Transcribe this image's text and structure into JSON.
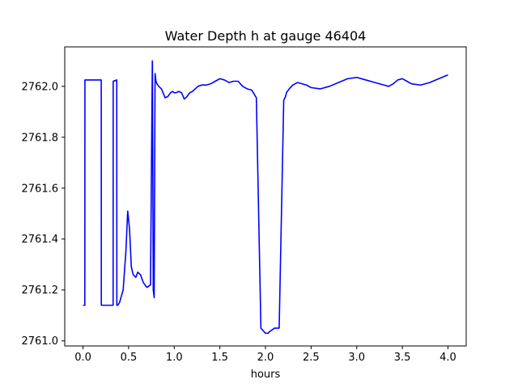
{
  "chart_data": {
    "type": "line",
    "title": "Water Depth h at gauge 46404",
    "xlabel": "hours",
    "ylabel": "",
    "xlim": [
      -0.2,
      4.2
    ],
    "ylim": [
      2760.98,
      2762.155
    ],
    "xticks": [
      0.0,
      0.5,
      1.0,
      1.5,
      2.0,
      2.5,
      3.0,
      3.5,
      4.0
    ],
    "xtick_labels": [
      "0.0",
      "0.5",
      "1.0",
      "1.5",
      "2.0",
      "2.5",
      "3.0",
      "3.5",
      "4.0"
    ],
    "yticks": [
      2761.0,
      2761.2,
      2761.4,
      2761.6,
      2761.8,
      2762.0
    ],
    "ytick_labels": [
      "2761.0",
      "2761.2",
      "2761.4",
      "2761.6",
      "2761.8",
      "2762.0"
    ],
    "grid": false,
    "series": [
      {
        "color": "#0000ff",
        "x": [
          0.0,
          0.02,
          0.021,
          0.2,
          0.201,
          0.33,
          0.331,
          0.37,
          0.371,
          0.38,
          0.4,
          0.44,
          0.47,
          0.49,
          0.51,
          0.53,
          0.55,
          0.58,
          0.6,
          0.63,
          0.66,
          0.7,
          0.74,
          0.76,
          0.761,
          0.77,
          0.78,
          0.79,
          0.8,
          0.81,
          0.811,
          0.83,
          0.86,
          0.9,
          0.93,
          0.96,
          0.98,
          1.0,
          1.02,
          1.05,
          1.08,
          1.11,
          1.14,
          1.17,
          1.2,
          1.23,
          1.26,
          1.3,
          1.35,
          1.4,
          1.45,
          1.5,
          1.55,
          1.6,
          1.65,
          1.7,
          1.75,
          1.8,
          1.85,
          1.9,
          1.95,
          2.0,
          2.03,
          2.04,
          2.06,
          2.1,
          2.15,
          2.2,
          2.22,
          2.23,
          2.26,
          2.3,
          2.35,
          2.4,
          2.45,
          2.5,
          2.6,
          2.7,
          2.8,
          2.9,
          3.0,
          3.1,
          3.2,
          3.3,
          3.35,
          3.4,
          3.45,
          3.5,
          3.55,
          3.6,
          3.7,
          3.8,
          3.9,
          4.0
        ],
        "y": [
          2761.14,
          2761.14,
          2762.025,
          2762.025,
          2761.14,
          2761.14,
          2762.02,
          2762.025,
          2761.14,
          2761.14,
          2761.15,
          2761.2,
          2761.35,
          2761.51,
          2761.44,
          2761.29,
          2761.26,
          2761.25,
          2761.27,
          2761.26,
          2761.23,
          2761.21,
          2761.22,
          2762.1,
          2762.095,
          2761.2,
          2761.17,
          2762.05,
          2762.02,
          2762.01,
          2762.01,
          2762.0,
          2761.99,
          2761.955,
          2761.96,
          2761.975,
          2761.98,
          2761.975,
          2761.975,
          2761.98,
          2761.975,
          2761.95,
          2761.96,
          2761.975,
          2761.98,
          2761.99,
          2762.0,
          2762.005,
          2762.005,
          2762.01,
          2762.02,
          2762.03,
          2762.025,
          2762.015,
          2762.02,
          2762.02,
          2762.0,
          2761.99,
          2761.985,
          2761.955,
          2761.05,
          2761.03,
          2761.03,
          2761.035,
          2761.04,
          2761.05,
          2761.05,
          2761.945,
          2761.96,
          2761.975,
          2761.99,
          2762.005,
          2762.015,
          2762.01,
          2762.005,
          2761.995,
          2761.99,
          2762.0,
          2762.015,
          2762.03,
          2762.035,
          2762.025,
          2762.015,
          2762.005,
          2762.0,
          2762.01,
          2762.025,
          2762.03,
          2762.02,
          2762.01,
          2762.005,
          2762.015,
          2762.03,
          2762.045
        ]
      }
    ]
  }
}
